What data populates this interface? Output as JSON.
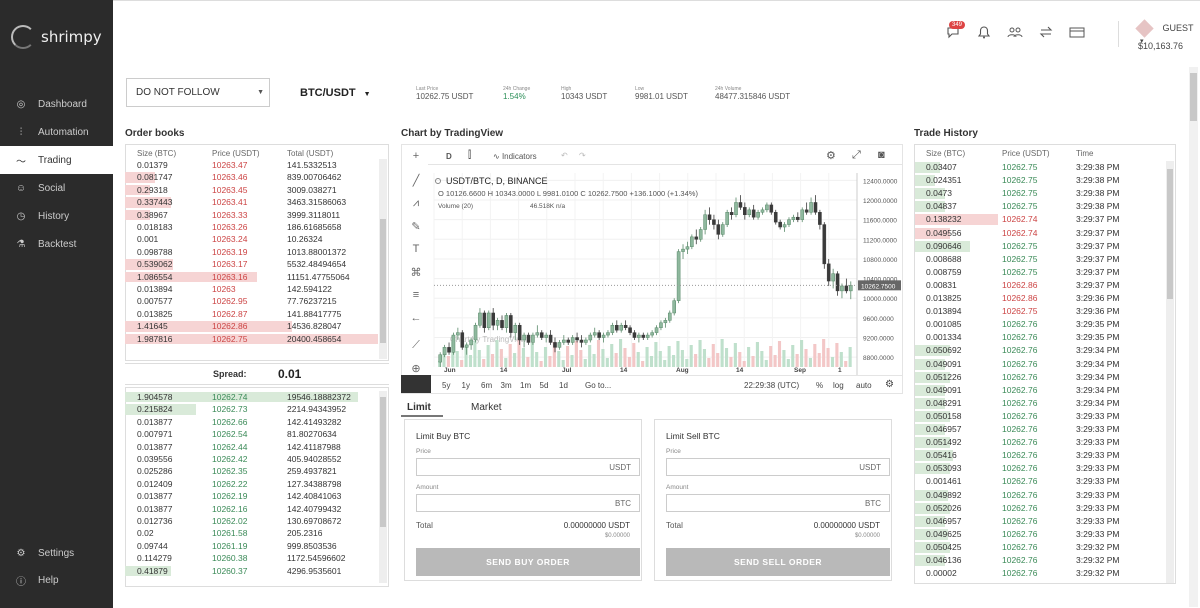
{
  "brand": {
    "name": "shrimpy"
  },
  "nav": [
    {
      "label": "Dashboard",
      "icon": "dashboard-icon",
      "glyph": "◎"
    },
    {
      "label": "Automation",
      "icon": "sliders-icon",
      "glyph": "⫶"
    },
    {
      "label": "Trading",
      "icon": "pulse-icon",
      "glyph": "〜"
    },
    {
      "label": "Social",
      "icon": "people-icon",
      "glyph": "☺"
    },
    {
      "label": "History",
      "icon": "clock-icon",
      "glyph": "◷"
    },
    {
      "label": "Backtest",
      "icon": "flask-icon",
      "glyph": "⚗"
    }
  ],
  "nav_bottom": [
    {
      "label": "Settings",
      "icon": "gear-icon",
      "glyph": "⚙"
    },
    {
      "label": "Help",
      "icon": "help-icon",
      "glyph": "ⓘ"
    }
  ],
  "topbar": {
    "badge_count": "349",
    "user": "GUEST",
    "balance": "$10,163.76"
  },
  "strategy_select": {
    "value": "DO NOT FOLLOW"
  },
  "pair": "BTC/USDT",
  "stats": [
    {
      "label": "Last Price",
      "value": "10262.75 USDT",
      "green": false
    },
    {
      "label": "24h Change",
      "value": "1.54%",
      "green": true
    },
    {
      "label": "High",
      "value": "10343 USDT",
      "green": false
    },
    {
      "label": "Low",
      "value": "9981.01 USDT",
      "green": false
    },
    {
      "label": "24h Volume",
      "value": "48477.315846 USDT",
      "green": false
    }
  ],
  "orderbook": {
    "title": "Order books",
    "headers": [
      "Size (BTC)",
      "Price (USDT)",
      "Total (USDT)"
    ],
    "asks": [
      [
        "0.01379",
        "10263.47",
        "141.5332513",
        0.0
      ],
      [
        "0.081747",
        "10263.46",
        "839.00706462",
        0.12
      ],
      [
        "0.29318",
        "10263.45",
        "3009.038271",
        0.1
      ],
      [
        "0.337443",
        "10263.41",
        "3463.31586063",
        0.18
      ],
      [
        "0.38967",
        "10263.33",
        "3999.3118011",
        0.1
      ],
      [
        "0.018183",
        "10263.26",
        "186.61685658",
        0.0
      ],
      [
        "0.001",
        "10263.24",
        "10.26324",
        0.0
      ],
      [
        "0.098788",
        "10263.19",
        "1013.88001372",
        0.0
      ],
      [
        "0.539062",
        "10263.17",
        "5532.48494654",
        0.19
      ],
      [
        "1.086554",
        "10263.16",
        "11151.47755064",
        0.52
      ],
      [
        "0.013894",
        "10263",
        "142.594122",
        0.0
      ],
      [
        "0.007577",
        "10262.95",
        "77.76237215",
        0.0
      ],
      [
        "0.013825",
        "10262.87",
        "141.88417775",
        0.0
      ],
      [
        "1.41645",
        "10262.86",
        "14536.828047",
        0.66
      ],
      [
        "1.987816",
        "10262.75",
        "20400.458654",
        1.0
      ]
    ],
    "spread_label": "Spread:",
    "spread_value": "0.01",
    "bids": [
      [
        "1.904578",
        "10262.74",
        "19546.18882372",
        0.92
      ],
      [
        "0.215824",
        "10262.73",
        "2214.94343952",
        0.28
      ],
      [
        "0.013877",
        "10262.66",
        "142.41493282",
        0.0
      ],
      [
        "0.007971",
        "10262.54",
        "81.80270634",
        0.0
      ],
      [
        "0.013877",
        "10262.44",
        "142.41187988",
        0.0
      ],
      [
        "0.039556",
        "10262.42",
        "405.94028552",
        0.0
      ],
      [
        "0.025286",
        "10262.35",
        "259.4937821",
        0.0
      ],
      [
        "0.012409",
        "10262.22",
        "127.34388798",
        0.0
      ],
      [
        "0.013877",
        "10262.19",
        "142.40841063",
        0.0
      ],
      [
        "0.013877",
        "10262.16",
        "142.40799432",
        0.0
      ],
      [
        "0.012736",
        "10262.02",
        "130.69708672",
        0.0
      ],
      [
        "0.02",
        "10261.58",
        "205.2316",
        0.0
      ],
      [
        "0.09744",
        "10261.19",
        "999.8503536",
        0.0
      ],
      [
        "0.114279",
        "10260.38",
        "1172.54596602",
        0.0
      ],
      [
        "0.41879",
        "10260.37",
        "4296.9535601",
        0.18
      ]
    ]
  },
  "chart": {
    "title": "Chart by TradingView",
    "interval": "D",
    "indicators_label": "Indicators",
    "symbol_line": "USDT/BTC, D, BINANCE",
    "ohlc_line": "O 10126.6600  H 10343.0000  L 9981.0100  C 10262.7500  +136.1000 (+1.34%)",
    "volume_line": "Volume (20)",
    "volume_value": "46.518K  n/a",
    "watermark": "Chart by TradingView",
    "y_ticks": [
      "12400.0000",
      "12000.0000",
      "11600.0000",
      "11200.0000",
      "10800.0000",
      "10400.0000",
      "10000.0000",
      "9600.0000",
      "9200.0000",
      "8800.0000"
    ],
    "last_price_tag": "10262.7500",
    "x_ticks": [
      "Jun",
      "14",
      "Jul",
      "14",
      "Aug",
      "14",
      "Sep",
      "1"
    ],
    "ranges": [
      "5y",
      "1y",
      "6m",
      "3m",
      "1m",
      "5d",
      "1d"
    ],
    "goto_label": "Go to...",
    "clock": "22:29:38 (UTC)",
    "pct": "%",
    "log": "log",
    "auto": "auto",
    "candles": [
      [
        8700,
        8900,
        8600,
        8850
      ],
      [
        8850,
        9050,
        8800,
        9000
      ],
      [
        9000,
        9100,
        8850,
        8900
      ],
      [
        8900,
        9300,
        8850,
        9250
      ],
      [
        9250,
        9400,
        9150,
        9300
      ],
      [
        9300,
        9350,
        8950,
        9000
      ],
      [
        9000,
        9100,
        8850,
        9050
      ],
      [
        9050,
        9200,
        8950,
        9150
      ],
      [
        9150,
        9500,
        9100,
        9450
      ],
      [
        9450,
        9800,
        9400,
        9700
      ],
      [
        9700,
        9750,
        9300,
        9400
      ],
      [
        9400,
        9750,
        9350,
        9700
      ],
      [
        9700,
        9800,
        9350,
        9450
      ],
      [
        9450,
        9600,
        9350,
        9550
      ],
      [
        9550,
        9650,
        9350,
        9400
      ],
      [
        9400,
        9700,
        9300,
        9650
      ],
      [
        9650,
        9700,
        9200,
        9300
      ],
      [
        9300,
        9500,
        9150,
        9450
      ],
      [
        9450,
        9500,
        9050,
        9150
      ],
      [
        9150,
        9300,
        9000,
        9250
      ],
      [
        9250,
        9300,
        9050,
        9100
      ],
      [
        9100,
        9300,
        9050,
        9250
      ],
      [
        9250,
        9450,
        9200,
        9300
      ],
      [
        9300,
        9350,
        9150,
        9200
      ],
      [
        9200,
        9300,
        9100,
        9250
      ],
      [
        9250,
        9350,
        9050,
        9100
      ],
      [
        9100,
        9200,
        8900,
        9000
      ],
      [
        9000,
        9150,
        8950,
        9100
      ],
      [
        9100,
        9250,
        9050,
        9150
      ],
      [
        9150,
        9200,
        9050,
        9100
      ],
      [
        9100,
        9250,
        9050,
        9200
      ],
      [
        9200,
        9300,
        9100,
        9150
      ],
      [
        9150,
        9250,
        9000,
        9100
      ],
      [
        9100,
        9200,
        9050,
        9150
      ],
      [
        9150,
        9300,
        9100,
        9250
      ],
      [
        9250,
        9400,
        9200,
        9300
      ],
      [
        9300,
        9350,
        9150,
        9200
      ],
      [
        9200,
        9300,
        9100,
        9250
      ],
      [
        9250,
        9350,
        9200,
        9300
      ],
      [
        9300,
        9500,
        9250,
        9450
      ],
      [
        9450,
        9550,
        9300,
        9350
      ],
      [
        9350,
        9500,
        9300,
        9450
      ],
      [
        9450,
        9550,
        9350,
        9400
      ],
      [
        9400,
        9450,
        9250,
        9300
      ],
      [
        9300,
        9350,
        9150,
        9200
      ],
      [
        9200,
        9300,
        9100,
        9250
      ],
      [
        9250,
        9300,
        9150,
        9200
      ],
      [
        9200,
        9300,
        9150,
        9250
      ],
      [
        9250,
        9350,
        9200,
        9300
      ],
      [
        9300,
        9450,
        9250,
        9400
      ],
      [
        9400,
        9550,
        9350,
        9500
      ],
      [
        9500,
        9600,
        9400,
        9550
      ],
      [
        9550,
        9750,
        9500,
        9700
      ],
      [
        9700,
        10000,
        9650,
        9950
      ],
      [
        9950,
        11000,
        9900,
        10950
      ],
      [
        10950,
        11100,
        10800,
        11000
      ],
      [
        11000,
        11150,
        10900,
        11050
      ],
      [
        11050,
        11300,
        11000,
        11250
      ],
      [
        11250,
        11400,
        11100,
        11200
      ],
      [
        11200,
        11450,
        11150,
        11400
      ],
      [
        11400,
        11800,
        11300,
        11700
      ],
      [
        11700,
        11850,
        11500,
        11600
      ],
      [
        11600,
        11700,
        11400,
        11500
      ],
      [
        11500,
        11600,
        11200,
        11300
      ],
      [
        11300,
        11550,
        11250,
        11500
      ],
      [
        11500,
        11800,
        11450,
        11750
      ],
      [
        11750,
        11850,
        11600,
        11700
      ],
      [
        11700,
        12050,
        11650,
        11950
      ],
      [
        11950,
        12100,
        11800,
        11850
      ],
      [
        11850,
        11950,
        11600,
        11700
      ],
      [
        11700,
        11850,
        11650,
        11800
      ],
      [
        11800,
        11900,
        11600,
        11650
      ],
      [
        11650,
        11800,
        11600,
        11750
      ],
      [
        11750,
        11850,
        11700,
        11800
      ],
      [
        11800,
        11950,
        11750,
        11900
      ],
      [
        11900,
        11950,
        11700,
        11750
      ],
      [
        11750,
        11800,
        11500,
        11550
      ],
      [
        11550,
        11600,
        11400,
        11450
      ],
      [
        11450,
        11550,
        11350,
        11500
      ],
      [
        11500,
        11650,
        11450,
        11600
      ],
      [
        11600,
        11700,
        11550,
        11650
      ],
      [
        11650,
        11750,
        11550,
        11600
      ],
      [
        11600,
        11850,
        11550,
        11800
      ],
      [
        11800,
        11950,
        11700,
        11750
      ],
      [
        11750,
        12050,
        11700,
        11950
      ],
      [
        11950,
        12100,
        11700,
        11750
      ],
      [
        11750,
        11800,
        11400,
        11500
      ],
      [
        11500,
        11550,
        10600,
        10700
      ],
      [
        10700,
        10800,
        10250,
        10350
      ],
      [
        10350,
        10600,
        10200,
        10500
      ],
      [
        10500,
        10550,
        10050,
        10150
      ],
      [
        10150,
        10300,
        10000,
        10250
      ],
      [
        10250,
        10400,
        10100,
        10150
      ],
      [
        10150,
        10343,
        9981,
        10263
      ]
    ]
  },
  "order_tabs": [
    "Limit",
    "Market"
  ],
  "buy": {
    "title": "Limit Buy BTC",
    "price_label": "Price",
    "price_unit": "USDT",
    "amount_label": "Amount",
    "amount_unit": "BTC",
    "total_label": "Total",
    "total_value": "0.00000000 USDT",
    "total_usd": "$0.00000",
    "button": "SEND BUY ORDER"
  },
  "sell": {
    "title": "Limit Sell BTC",
    "price_label": "Price",
    "price_unit": "USDT",
    "amount_label": "Amount",
    "amount_unit": "BTC",
    "total_label": "Total",
    "total_value": "0.00000000 USDT",
    "total_usd": "$0.00000",
    "button": "SEND SELL ORDER"
  },
  "trade_history": {
    "title": "Trade History",
    "headers": [
      "Size (BTC)",
      "Price (USDT)",
      "Time"
    ],
    "rows": [
      [
        "0.03407",
        "10262.75",
        "3:29:38 PM",
        "buy",
        0.1
      ],
      [
        "0.024351",
        "10262.75",
        "3:29:38 PM",
        "buy",
        0.08
      ],
      [
        "0.0473",
        "10262.75",
        "3:29:38 PM",
        "buy",
        0.12
      ],
      [
        "0.04837",
        "10262.75",
        "3:29:38 PM",
        "buy",
        0.12
      ],
      [
        "0.138232",
        "10262.74",
        "3:29:37 PM",
        "sell",
        0.33
      ],
      [
        "0.049556",
        "10262.74",
        "3:29:37 PM",
        "sell",
        0.14
      ],
      [
        "0.090646",
        "10262.75",
        "3:29:37 PM",
        "buy",
        0.22
      ],
      [
        "0.008688",
        "10262.75",
        "3:29:37 PM",
        "buy",
        0.0
      ],
      [
        "0.008759",
        "10262.75",
        "3:29:37 PM",
        "buy",
        0.0
      ],
      [
        "0.00831",
        "10262.86",
        "3:29:37 PM",
        "sell",
        0.0
      ],
      [
        "0.013825",
        "10262.86",
        "3:29:36 PM",
        "sell",
        0.0
      ],
      [
        "0.013894",
        "10262.75",
        "3:29:36 PM",
        "sell",
        0.0
      ],
      [
        "0.001085",
        "10262.76",
        "3:29:35 PM",
        "buy",
        0.0
      ],
      [
        "0.001334",
        "10262.76",
        "3:29:35 PM",
        "buy",
        0.0
      ],
      [
        "0.050692",
        "10262.76",
        "3:29:34 PM",
        "buy",
        0.14
      ],
      [
        "0.049091",
        "10262.76",
        "3:29:34 PM",
        "buy",
        0.12
      ],
      [
        "0.051226",
        "10262.76",
        "3:29:34 PM",
        "buy",
        0.14
      ],
      [
        "0.049091",
        "10262.76",
        "3:29:34 PM",
        "buy",
        0.12
      ],
      [
        "0.048291",
        "10262.76",
        "3:29:34 PM",
        "buy",
        0.12
      ],
      [
        "0.050158",
        "10262.76",
        "3:29:33 PM",
        "buy",
        0.14
      ],
      [
        "0.046957",
        "10262.76",
        "3:29:33 PM",
        "buy",
        0.12
      ],
      [
        "0.051492",
        "10262.76",
        "3:29:33 PM",
        "buy",
        0.14
      ],
      [
        "0.05416",
        "10262.76",
        "3:29:33 PM",
        "buy",
        0.15
      ],
      [
        "0.053093",
        "10262.76",
        "3:29:33 PM",
        "buy",
        0.14
      ],
      [
        "0.001461",
        "10262.76",
        "3:29:33 PM",
        "buy",
        0.0
      ],
      [
        "0.049892",
        "10262.76",
        "3:29:33 PM",
        "buy",
        0.13
      ],
      [
        "0.052026",
        "10262.76",
        "3:29:33 PM",
        "buy",
        0.14
      ],
      [
        "0.046957",
        "10262.76",
        "3:29:33 PM",
        "buy",
        0.12
      ],
      [
        "0.049625",
        "10262.76",
        "3:29:33 PM",
        "buy",
        0.13
      ],
      [
        "0.050425",
        "10262.76",
        "3:29:32 PM",
        "buy",
        0.14
      ],
      [
        "0.046136",
        "10262.76",
        "3:29:32 PM",
        "buy",
        0.12
      ],
      [
        "0.00002",
        "10262.76",
        "3:29:32 PM",
        "buy",
        0.0
      ]
    ]
  },
  "colors": {
    "ask_bg": "#f6d4d4",
    "bid_bg": "#d9ead9",
    "ask_text": "#c44",
    "bid_text": "#3a8a57",
    "sidebar": "#2b2b2b",
    "up": "#5a8a6a",
    "down": "#3a3a3a"
  }
}
